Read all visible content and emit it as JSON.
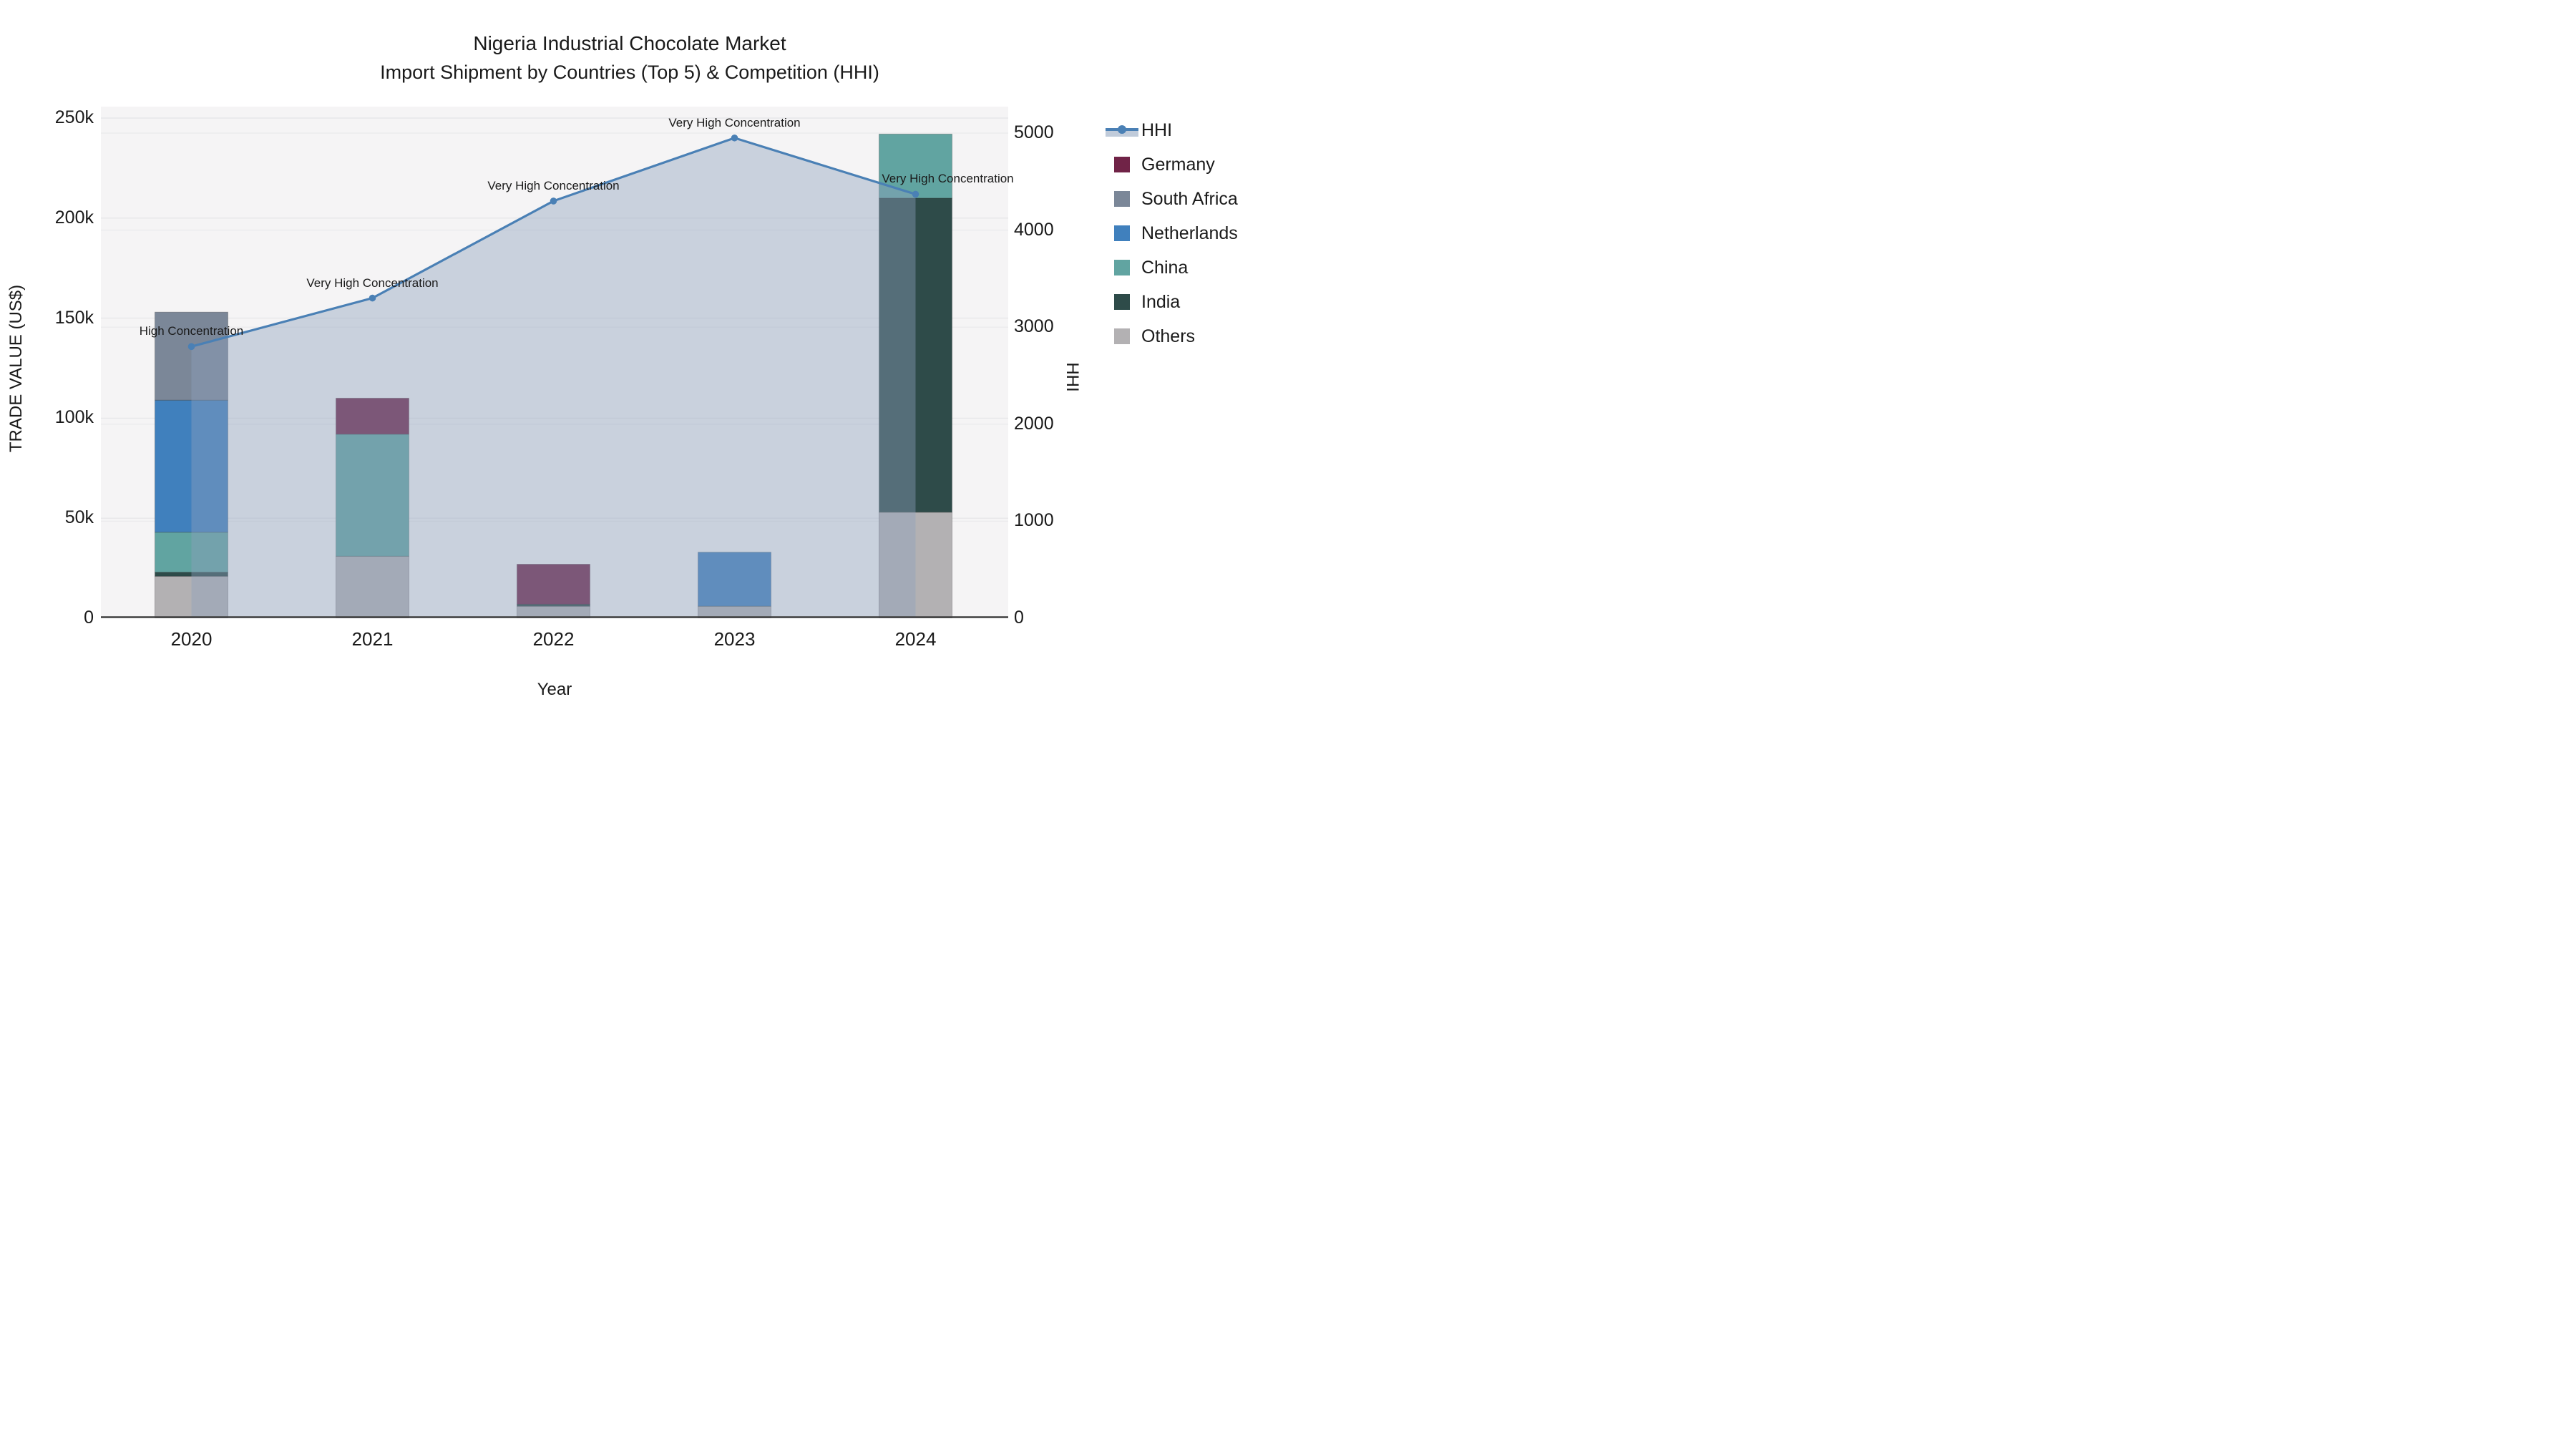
{
  "title": {
    "line1": "Nigeria Industrial Chocolate Market",
    "line2": "Import Shipment by Countries (Top 5) & Competition (HHI)"
  },
  "chart_data": {
    "type": "combo: stacked-bar + line-area (dual axis)",
    "categories": [
      "2020",
      "2021",
      "2022",
      "2023",
      "2024"
    ],
    "xlabel": "Year",
    "y_left": {
      "label": "TRADE VALUE (US$)",
      "tick_labels": [
        "0",
        "50k",
        "100k",
        "150k",
        "200k",
        "250k"
      ],
      "tick_values_thousand_usd": [
        0,
        50,
        100,
        150,
        200,
        250
      ],
      "range_thousand_usd": [
        0,
        250
      ]
    },
    "y_right": {
      "label": "HHI",
      "tick_labels": [
        "0",
        "1000",
        "2000",
        "3000",
        "4000",
        "5000"
      ],
      "tick_values": [
        0,
        1000,
        2000,
        3000,
        4000,
        5000
      ],
      "range": [
        0,
        5000
      ]
    },
    "bar_series_bottom_to_top": [
      {
        "name": "Others",
        "color": "#B3B1B3",
        "values_thousand_usd": [
          21,
          31,
          6,
          6,
          53
        ]
      },
      {
        "name": "India",
        "color": "#2E4B49",
        "values_thousand_usd": [
          2,
          0,
          1,
          0,
          157
        ]
      },
      {
        "name": "China",
        "color": "#61A4A1",
        "values_thousand_usd": [
          20,
          61,
          0,
          0,
          32
        ]
      },
      {
        "name": "Netherlands",
        "color": "#4080BD",
        "values_thousand_usd": [
          66,
          0,
          0,
          27,
          0
        ]
      },
      {
        "name": "South Africa",
        "color": "#7B8798",
        "values_thousand_usd": [
          44,
          0,
          0,
          0,
          0
        ]
      },
      {
        "name": "Germany",
        "color": "#702347",
        "values_thousand_usd": [
          0,
          18,
          20,
          0,
          0
        ]
      }
    ],
    "bar_totals_thousand_usd": [
      153,
      110,
      27,
      33,
      242
    ],
    "line_series": {
      "name": "HHI",
      "color": "#4A80B5",
      "area_fill": "rgba(140,160,188,0.42)",
      "values": [
        2800,
        3300,
        4300,
        4950,
        4370
      ]
    },
    "annotations": [
      "High Concentration",
      "Very High Concentration",
      "Very High Concentration",
      "Very High Concentration",
      "Very High Concentration"
    ],
    "legend_order": [
      "HHI",
      "Germany",
      "South Africa",
      "Netherlands",
      "China",
      "India",
      "Others"
    ],
    "layout_hints": {
      "plot_background": "#f5f4f5",
      "gridlines": "horizontal, light gray, both axes tick sets",
      "legend_position": "right",
      "bar_width_fraction": 0.4
    }
  }
}
